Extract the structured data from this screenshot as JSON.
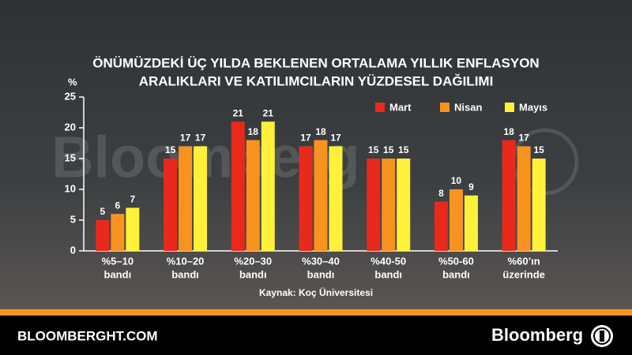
{
  "chart_data": {
    "type": "bar",
    "title_lines": [
      "ÖNÜMÜZDEKİ ÜÇ YILDA BEKLENEN ORTALAMA YILLIK ENFLASYON",
      "ARALIKLARI VE KATILIMCILARIN YÜZDESEL DAĞILIMI"
    ],
    "y_label": "%",
    "categories": [
      [
        "%5–10",
        "bandı"
      ],
      [
        "%10–20",
        "bandı"
      ],
      [
        "%20–30",
        "bandı"
      ],
      [
        "%30–40",
        "bandı"
      ],
      [
        "%40-50",
        "bandı"
      ],
      [
        "%50-60",
        "bandı"
      ],
      [
        "%60’ın",
        "üzerinde"
      ]
    ],
    "series": [
      {
        "name": "Mart",
        "color": "#e8291c",
        "values": [
          5,
          15,
          21,
          17,
          15,
          8,
          18
        ]
      },
      {
        "name": "Nisan",
        "color": "#f7931e",
        "values": [
          6,
          17,
          18,
          18,
          15,
          10,
          17
        ]
      },
      {
        "name": "Mayıs",
        "color": "#fff03a",
        "values": [
          7,
          17,
          21,
          17,
          15,
          9,
          15
        ]
      }
    ],
    "ylim": [
      0,
      25
    ],
    "yticks": [
      0,
      5,
      10,
      15,
      20,
      25
    ],
    "grid": false,
    "legend": "top-right",
    "source": "Kaynak: Koç Üniversitesi"
  },
  "watermark": "Bloomberg",
  "footer": {
    "site": "BLOOMBERGHT.COM",
    "brand": "Bloomberg"
  }
}
